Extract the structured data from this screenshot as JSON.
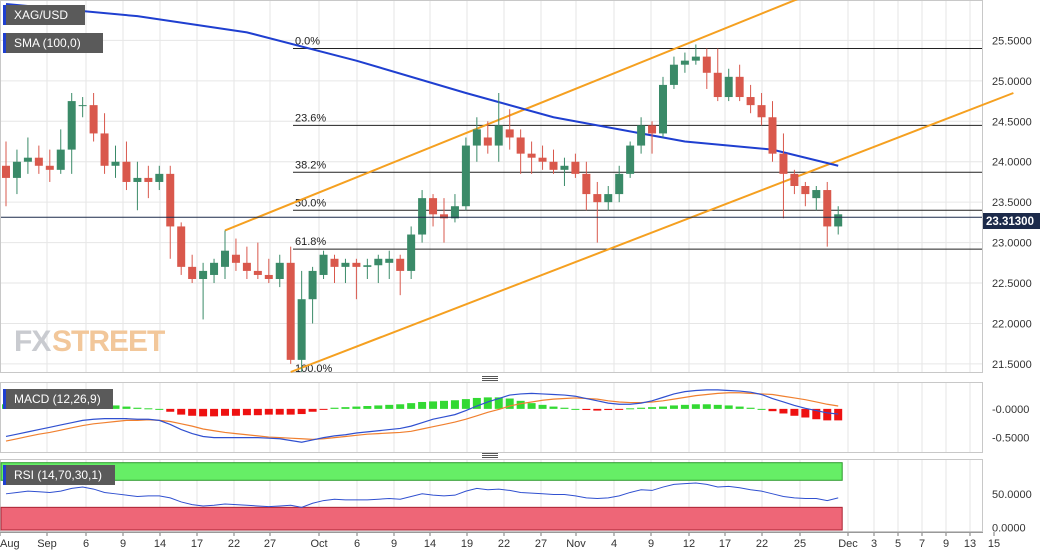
{
  "colors": {
    "up": "#3a8a68",
    "down": "#d9584c",
    "sma": "#1f3fd0",
    "channel": "#f5a020",
    "fib": "#222222",
    "macd_line": "#3050d0",
    "signal_line": "#f08030",
    "hist_pos": "#33d933",
    "hist_neg": "#ee1111",
    "rsi_line": "#3050d0",
    "rsi_overbought": "#66ee66",
    "rsi_oversold": "#ee6677",
    "panel_label_bg": "#5a5a5a"
  },
  "labels": {
    "symbol": "XAG/USD",
    "sma": "SMA (100,0)",
    "macd": "MACD (12,26,9)",
    "rsi": "RSI (14,70,30,1)",
    "watermark_fx": "FX",
    "watermark_street": "STREET"
  },
  "price_badge": "23.31300",
  "chart_data": {
    "type": "candlestick",
    "price_axis": {
      "ylim": [
        21.4,
        26.0
      ],
      "ticks": [
        "25.5000",
        "25.0000",
        "24.5000",
        "24.0000",
        "23.5000",
        "23.0000",
        "22.5000",
        "22.0000",
        "21.5000"
      ],
      "tick_values": [
        25.5,
        25.0,
        24.5,
        24.0,
        23.5,
        23.0,
        22.5,
        22.0,
        21.5
      ]
    },
    "x_tick_labels": [
      "Aug",
      "Sep",
      "6",
      "9",
      "14",
      "17",
      "22",
      "27",
      "Oct",
      "6",
      "9",
      "14",
      "19",
      "22",
      "27",
      "Nov",
      "4",
      "9",
      "12",
      "17",
      "22",
      "25",
      "Dec",
      "3",
      "5",
      "7",
      "9",
      "13",
      "15"
    ],
    "candles": [
      [
        23.95,
        24.25,
        23.45,
        23.8
      ],
      [
        23.8,
        24.15,
        23.6,
        24.0
      ],
      [
        24.0,
        24.3,
        23.85,
        24.05
      ],
      [
        24.05,
        24.2,
        23.85,
        23.95
      ],
      [
        23.95,
        24.15,
        23.75,
        23.9
      ],
      [
        23.9,
        24.4,
        23.85,
        24.15
      ],
      [
        24.15,
        24.85,
        23.85,
        24.75
      ],
      [
        24.7,
        24.8,
        24.55,
        24.7
      ],
      [
        24.7,
        24.85,
        24.25,
        24.35
      ],
      [
        24.35,
        24.6,
        23.85,
        23.95
      ],
      [
        23.95,
        24.2,
        23.8,
        24.0
      ],
      [
        24.0,
        24.25,
        23.65,
        23.75
      ],
      [
        23.75,
        24.0,
        23.4,
        23.8
      ],
      [
        23.8,
        23.95,
        23.55,
        23.75
      ],
      [
        23.75,
        23.95,
        23.65,
        23.85
      ],
      [
        23.85,
        23.95,
        22.8,
        23.2
      ],
      [
        23.2,
        23.25,
        22.6,
        22.7
      ],
      [
        22.7,
        22.85,
        22.5,
        22.55
      ],
      [
        22.55,
        22.75,
        22.05,
        22.65
      ],
      [
        22.6,
        22.8,
        22.5,
        22.75
      ],
      [
        22.7,
        23.15,
        22.55,
        22.9
      ],
      [
        22.85,
        23.05,
        22.65,
        22.75
      ],
      [
        22.75,
        22.95,
        22.55,
        22.65
      ],
      [
        22.65,
        23.0,
        22.55,
        22.6
      ],
      [
        22.6,
        22.8,
        22.5,
        22.55
      ],
      [
        22.55,
        22.85,
        22.45,
        22.75
      ],
      [
        22.75,
        22.95,
        21.5,
        21.55
      ],
      [
        21.55,
        22.65,
        21.4,
        22.3
      ],
      [
        22.3,
        22.7,
        22.0,
        22.65
      ],
      [
        22.6,
        22.9,
        22.55,
        22.85
      ],
      [
        22.8,
        22.85,
        22.5,
        22.7
      ],
      [
        22.7,
        22.8,
        22.5,
        22.75
      ],
      [
        22.75,
        22.8,
        22.3,
        22.7
      ],
      [
        22.7,
        22.8,
        22.55,
        22.72
      ],
      [
        22.72,
        22.85,
        22.5,
        22.8
      ],
      [
        22.75,
        22.9,
        22.55,
        22.8
      ],
      [
        22.8,
        22.85,
        22.35,
        22.65
      ],
      [
        22.65,
        23.2,
        22.55,
        23.1
      ],
      [
        23.1,
        23.65,
        23.0,
        23.55
      ],
      [
        23.55,
        23.6,
        23.2,
        23.35
      ],
      [
        23.35,
        23.55,
        23.0,
        23.3
      ],
      [
        23.3,
        23.6,
        23.25,
        23.45
      ],
      [
        23.45,
        24.3,
        23.4,
        24.2
      ],
      [
        24.2,
        24.55,
        24.0,
        24.4
      ],
      [
        24.3,
        24.5,
        24.1,
        24.2
      ],
      [
        24.2,
        24.85,
        24.0,
        24.45
      ],
      [
        24.4,
        24.65,
        24.15,
        24.3
      ],
      [
        24.3,
        24.4,
        23.85,
        24.1
      ],
      [
        24.1,
        24.25,
        23.85,
        24.05
      ],
      [
        24.05,
        24.2,
        23.9,
        24.0
      ],
      [
        24.0,
        24.15,
        23.85,
        23.9
      ],
      [
        23.9,
        24.05,
        23.7,
        23.95
      ],
      [
        24.0,
        24.1,
        23.8,
        23.85
      ],
      [
        23.85,
        24.0,
        23.4,
        23.6
      ],
      [
        23.6,
        23.75,
        23.0,
        23.5
      ],
      [
        23.5,
        23.7,
        23.4,
        23.6
      ],
      [
        23.6,
        23.95,
        23.5,
        23.85
      ],
      [
        23.85,
        24.25,
        23.8,
        24.2
      ],
      [
        24.2,
        24.55,
        24.1,
        24.45
      ],
      [
        24.45,
        24.5,
        24.1,
        24.35
      ],
      [
        24.35,
        25.05,
        24.3,
        24.95
      ],
      [
        24.95,
        25.3,
        24.9,
        25.2
      ],
      [
        25.2,
        25.35,
        25.1,
        25.25
      ],
      [
        25.25,
        25.45,
        25.2,
        25.3
      ],
      [
        25.3,
        25.4,
        24.9,
        25.1
      ],
      [
        25.1,
        25.4,
        24.75,
        24.8
      ],
      [
        24.8,
        25.15,
        24.75,
        25.05
      ],
      [
        25.05,
        25.2,
        24.75,
        24.8
      ],
      [
        24.8,
        24.95,
        24.6,
        24.7
      ],
      [
        24.7,
        24.85,
        24.45,
        24.55
      ],
      [
        24.55,
        24.75,
        24.0,
        24.1
      ],
      [
        24.1,
        24.35,
        23.3,
        23.85
      ],
      [
        23.85,
        23.9,
        23.6,
        23.7
      ],
      [
        23.7,
        23.75,
        23.45,
        23.6
      ],
      [
        23.55,
        23.7,
        23.4,
        23.65
      ],
      [
        23.65,
        23.75,
        22.95,
        23.2
      ],
      [
        23.2,
        23.45,
        23.1,
        23.35
      ]
    ],
    "sma100": [
      [
        0,
        25.95
      ],
      [
        12,
        25.8
      ],
      [
        22,
        25.6
      ],
      [
        32,
        25.25
      ],
      [
        42,
        24.85
      ],
      [
        50,
        24.55
      ],
      [
        56,
        24.4
      ],
      [
        62,
        24.25
      ],
      [
        70,
        24.15
      ],
      [
        76,
        23.95
      ]
    ],
    "fibonacci": [
      {
        "label": "0.0%",
        "value": 25.4
      },
      {
        "label": "23.6%",
        "value": 24.45
      },
      {
        "label": "38.2%",
        "value": 23.87
      },
      {
        "label": "50.0%",
        "value": 23.4
      },
      {
        "label": "61.8%",
        "value": 22.92
      },
      {
        "label": "100.0%",
        "value": 21.4
      }
    ],
    "channel": [
      {
        "from": [
          20,
          23.15
        ],
        "to": [
          73,
          26.05
        ]
      },
      {
        "from": [
          26,
          21.4
        ],
        "to": [
          92,
          24.85
        ]
      }
    ],
    "current_price": 23.313,
    "macd": {
      "ylim": [
        -0.75,
        0.45
      ],
      "ticks": [
        "-0.0000",
        "-0.5000"
      ],
      "tick_values": [
        0.0,
        -0.5
      ],
      "histogram": [
        0.08,
        0.08,
        0.07,
        0.07,
        0.08,
        0.08,
        0.09,
        0.09,
        0.09,
        0.08,
        0.06,
        0.04,
        0.02,
        0.01,
        0.0,
        -0.05,
        -0.1,
        -0.12,
        -0.13,
        -0.13,
        -0.12,
        -0.12,
        -0.11,
        -0.11,
        -0.1,
        -0.1,
        -0.1,
        -0.09,
        -0.05,
        -0.01,
        0.02,
        0.03,
        0.04,
        0.05,
        0.06,
        0.07,
        0.08,
        0.1,
        0.12,
        0.13,
        0.14,
        0.15,
        0.17,
        0.19,
        0.2,
        0.2,
        0.18,
        0.14,
        0.1,
        0.07,
        0.04,
        0.02,
        0.0,
        -0.02,
        -0.03,
        -0.02,
        -0.01,
        0.01,
        0.02,
        0.03,
        0.04,
        0.06,
        0.07,
        0.08,
        0.08,
        0.07,
        0.06,
        0.04,
        0.02,
        0.0,
        -0.04,
        -0.08,
        -0.12,
        -0.15,
        -0.18,
        -0.2,
        -0.2
      ],
      "macd_line": [
        -0.48,
        -0.44,
        -0.4,
        -0.36,
        -0.32,
        -0.28,
        -0.24,
        -0.2,
        -0.18,
        -0.17,
        -0.17,
        -0.17,
        -0.18,
        -0.18,
        -0.2,
        -0.27,
        -0.36,
        -0.43,
        -0.48,
        -0.5,
        -0.5,
        -0.5,
        -0.5,
        -0.5,
        -0.51,
        -0.52,
        -0.55,
        -0.58,
        -0.54,
        -0.5,
        -0.47,
        -0.45,
        -0.42,
        -0.4,
        -0.38,
        -0.36,
        -0.34,
        -0.3,
        -0.24,
        -0.18,
        -0.14,
        -0.1,
        -0.03,
        0.05,
        0.12,
        0.18,
        0.24,
        0.26,
        0.27,
        0.26,
        0.25,
        0.24,
        0.22,
        0.18,
        0.14,
        0.1,
        0.08,
        0.08,
        0.1,
        0.14,
        0.2,
        0.26,
        0.3,
        0.32,
        0.33,
        0.33,
        0.32,
        0.31,
        0.29,
        0.25,
        0.18,
        0.12,
        0.06,
        0.01,
        -0.03,
        -0.07,
        -0.09
      ],
      "signal_line": [
        -0.56,
        -0.52,
        -0.48,
        -0.44,
        -0.41,
        -0.37,
        -0.33,
        -0.29,
        -0.26,
        -0.24,
        -0.22,
        -0.2,
        -0.2,
        -0.19,
        -0.2,
        -0.22,
        -0.26,
        -0.3,
        -0.35,
        -0.38,
        -0.41,
        -0.43,
        -0.45,
        -0.47,
        -0.49,
        -0.5,
        -0.51,
        -0.52,
        -0.53,
        -0.52,
        -0.5,
        -0.48,
        -0.46,
        -0.44,
        -0.43,
        -0.42,
        -0.41,
        -0.39,
        -0.35,
        -0.31,
        -0.27,
        -0.23,
        -0.18,
        -0.12,
        -0.06,
        -0.01,
        0.05,
        0.09,
        0.12,
        0.15,
        0.17,
        0.18,
        0.19,
        0.18,
        0.17,
        0.14,
        0.12,
        0.11,
        0.11,
        0.12,
        0.14,
        0.17,
        0.2,
        0.23,
        0.25,
        0.27,
        0.28,
        0.28,
        0.27,
        0.26,
        0.25,
        0.22,
        0.19,
        0.16,
        0.12,
        0.08,
        0.05
      ]
    },
    "rsi": {
      "ylim": [
        -5,
        100
      ],
      "ticks": [
        "50.0000",
        "0.0000"
      ],
      "tick_values": [
        50,
        0
      ],
      "overbought": 70,
      "oversold": 30,
      "values": [
        50,
        52,
        54,
        53,
        52,
        54,
        58,
        60,
        57,
        52,
        50,
        48,
        46,
        47,
        47,
        44,
        38,
        34,
        32,
        33,
        35,
        34,
        33,
        32,
        31,
        32,
        33,
        30,
        36,
        40,
        42,
        41,
        41,
        41,
        42,
        43,
        42,
        46,
        50,
        48,
        47,
        48,
        54,
        58,
        56,
        57,
        55,
        52,
        51,
        50,
        49,
        49,
        47,
        44,
        43,
        44,
        47,
        52,
        56,
        55,
        60,
        64,
        65,
        66,
        64,
        60,
        61,
        59,
        56,
        54,
        50,
        46,
        44,
        43,
        43,
        40,
        44
      ]
    }
  }
}
